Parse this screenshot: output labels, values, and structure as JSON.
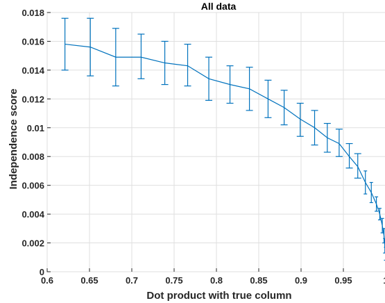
{
  "chart_data": {
    "type": "line",
    "title": "All data",
    "xlabel": "Dot product with true column",
    "ylabel": "Independence score",
    "xlim": [
      0.6,
      1.0
    ],
    "ylim": [
      0,
      0.018
    ],
    "grid": true,
    "xticks": [
      "0.6",
      "0.65",
      "0.7",
      "0.75",
      "0.8",
      "0.85",
      "0.9",
      "0.95",
      "1"
    ],
    "yticks": [
      "0",
      "0.002",
      "0.004",
      "0.006",
      "0.008",
      "0.01",
      "0.012",
      "0.014",
      "0.016",
      "0.018"
    ],
    "line_color": "#0072BD",
    "series": [
      {
        "error_bars": true,
        "points": [
          {
            "x": 0.621,
            "y": 0.0158,
            "lo": 0.014,
            "hi": 0.0176
          },
          {
            "x": 0.651,
            "y": 0.0156,
            "lo": 0.0136,
            "hi": 0.0176
          },
          {
            "x": 0.681,
            "y": 0.0149,
            "lo": 0.0129,
            "hi": 0.0169
          },
          {
            "x": 0.711,
            "y": 0.0149,
            "lo": 0.0134,
            "hi": 0.0165
          },
          {
            "x": 0.739,
            "y": 0.0145,
            "lo": 0.013,
            "hi": 0.016
          },
          {
            "x": 0.766,
            "y": 0.0143,
            "lo": 0.0129,
            "hi": 0.0158
          },
          {
            "x": 0.791,
            "y": 0.0134,
            "lo": 0.0119,
            "hi": 0.0149
          },
          {
            "x": 0.816,
            "y": 0.013,
            "lo": 0.0117,
            "hi": 0.0143
          },
          {
            "x": 0.839,
            "y": 0.0127,
            "lo": 0.0112,
            "hi": 0.0142
          },
          {
            "x": 0.861,
            "y": 0.012,
            "lo": 0.0107,
            "hi": 0.0133
          },
          {
            "x": 0.88,
            "y": 0.0114,
            "lo": 0.0102,
            "hi": 0.0126
          },
          {
            "x": 0.899,
            "y": 0.0106,
            "lo": 0.0094,
            "hi": 0.0117
          },
          {
            "x": 0.916,
            "y": 0.01,
            "lo": 0.0088,
            "hi": 0.0112
          },
          {
            "x": 0.931,
            "y": 0.0093,
            "lo": 0.0083,
            "hi": 0.0103
          },
          {
            "x": 0.945,
            "y": 0.0089,
            "lo": 0.008,
            "hi": 0.0099
          },
          {
            "x": 0.957,
            "y": 0.008,
            "lo": 0.0072,
            "hi": 0.0089
          },
          {
            "x": 0.967,
            "y": 0.0073,
            "lo": 0.0065,
            "hi": 0.0082
          },
          {
            "x": 0.976,
            "y": 0.0062,
            "lo": 0.0054,
            "hi": 0.007
          },
          {
            "x": 0.983,
            "y": 0.0055,
            "lo": 0.0048,
            "hi": 0.0062
          },
          {
            "x": 0.989,
            "y": 0.0047,
            "lo": 0.0042,
            "hi": 0.0052
          },
          {
            "x": 0.993,
            "y": 0.004,
            "lo": 0.0036,
            "hi": 0.0044
          },
          {
            "x": 0.996,
            "y": 0.0032,
            "lo": 0.0027,
            "hi": 0.0037
          },
          {
            "x": 0.998,
            "y": 0.0025,
            "lo": 0.002,
            "hi": 0.003
          },
          {
            "x": 0.999,
            "y": 0.0018,
            "lo": 0.0013,
            "hi": 0.0023
          },
          {
            "x": 1.0,
            "y": 0.0012,
            "lo": 0.0008,
            "hi": 0.0017
          }
        ]
      }
    ]
  }
}
